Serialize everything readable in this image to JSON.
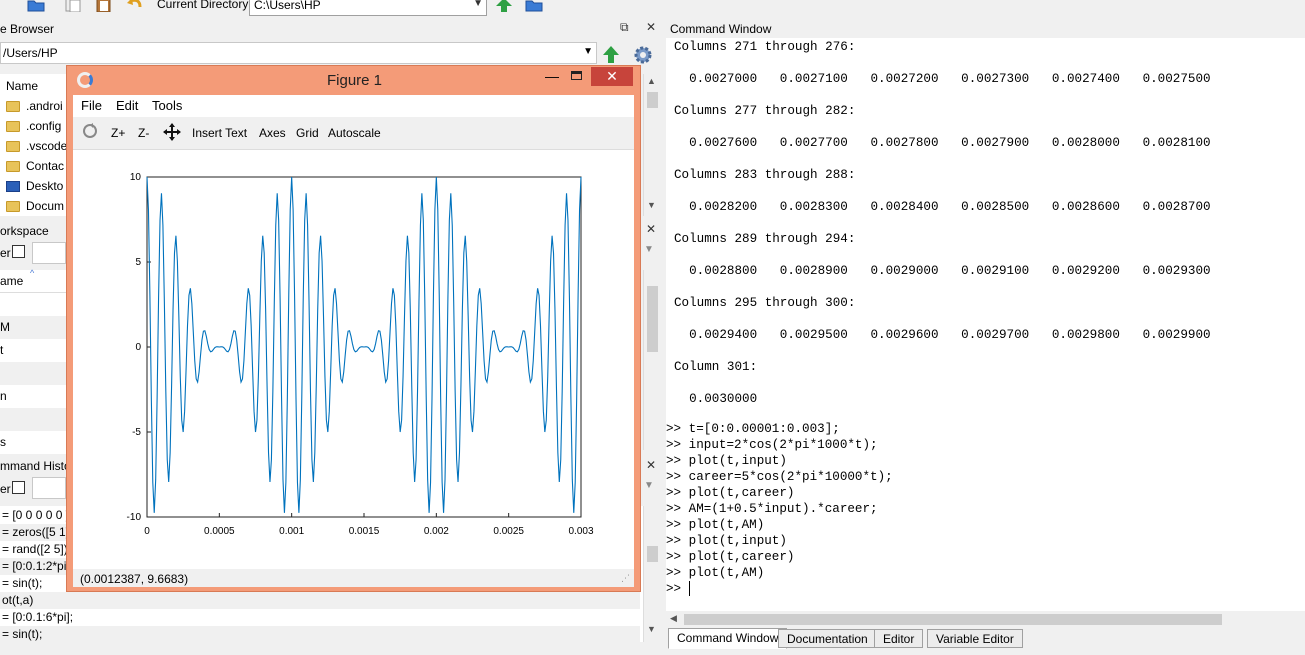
{
  "toolbar": {
    "current_directory_label": "Current Directory:",
    "current_directory_value": "C:\\Users\\HP"
  },
  "file_browser": {
    "title": "e Browser",
    "path": "/Users/HP",
    "column_name": "Name",
    "items": [
      {
        "label": ".androi",
        "icon": "folder-icon"
      },
      {
        "label": ".config",
        "icon": "folder-icon"
      },
      {
        "label": ".vscode",
        "icon": "folder-icon"
      },
      {
        "label": "Contac",
        "icon": "folder-icon"
      },
      {
        "label": "Deskto",
        "icon": "desktop-icon"
      },
      {
        "label": "Docum",
        "icon": "folder-icon"
      }
    ]
  },
  "workspace": {
    "title": "orkspace",
    "filter_label": "er",
    "column_name": "ame",
    "rows": [
      "",
      "M",
      "t",
      "",
      "n",
      "",
      "s"
    ]
  },
  "command_history": {
    "title": "mmand Histor",
    "filter_label": "er",
    "rows": [
      "= [0 0 0 0 0 ]",
      "= zeros([5 1])",
      "= rand([2 5])",
      "= [0:0.1:2*pi]",
      "= sin(t);",
      "ot(t,a)",
      "= [0:0.1:6*pi];",
      "= sin(t);"
    ]
  },
  "figure": {
    "title": "Figure 1",
    "menus": [
      "File",
      "Edit",
      "Tools"
    ],
    "tools": {
      "zoom_in": "Z+",
      "zoom_out": "Z-",
      "insert_text": "Insert Text",
      "axes": "Axes",
      "grid": "Grid",
      "autoscale": "Autoscale"
    },
    "status": "(0.0012387, 9.6683)"
  },
  "chart_data": {
    "type": "line",
    "title": "",
    "xlabel": "",
    "ylabel": "",
    "xlim": [
      0,
      0.003
    ],
    "ylim": [
      -10,
      10
    ],
    "x_ticks": [
      "0",
      "0.0005",
      "0.001",
      "0.0015",
      "0.002",
      "0.0025",
      "0.003"
    ],
    "y_ticks": [
      "10",
      "5",
      "0",
      "-5",
      "-10"
    ],
    "grid": false,
    "series": [
      {
        "color": "#0072bd",
        "expression": "(1+0.5*2*cos(2*pi*1000*t)).*5*cos(2*pi*10000*t)",
        "x_start": 0,
        "x_step": 1e-05,
        "x_end": 0.003
      }
    ]
  },
  "command_window": {
    "title": "Command Window",
    "lines": [
      "Columns 271 through 276:",
      "",
      "  0.0027000   0.0027100   0.0027200   0.0027300   0.0027400   0.0027500",
      "",
      "Columns 277 through 282:",
      "",
      "  0.0027600   0.0027700   0.0027800   0.0027900   0.0028000   0.0028100",
      "",
      "Columns 283 through 288:",
      "",
      "  0.0028200   0.0028300   0.0028400   0.0028500   0.0028600   0.0028700",
      "",
      "Columns 289 through 294:",
      "",
      "  0.0028800   0.0028900   0.0029000   0.0029100   0.0029200   0.0029300",
      "",
      "Columns 295 through 300:",
      "",
      "  0.0029400   0.0029500   0.0029600   0.0029700   0.0029800   0.0029900",
      "",
      "Column 301:",
      "",
      "  0.0030000",
      "",
      ">> t=[0:0.00001:0.003];",
      ">> input=2*cos(2*pi*1000*t);",
      ">> plot(t,input)",
      ">> career=5*cos(2*pi*10000*t);",
      ">> plot(t,career)",
      ">> AM=(1+0.5*input).*career;",
      ">> plot(t,AM)",
      ">> plot(t,input)",
      ">> plot(t,career)",
      ">> plot(t,AM)",
      ">> "
    ],
    "tabs": [
      "Command Window",
      "Documentation",
      "Editor",
      "Variable Editor"
    ]
  }
}
